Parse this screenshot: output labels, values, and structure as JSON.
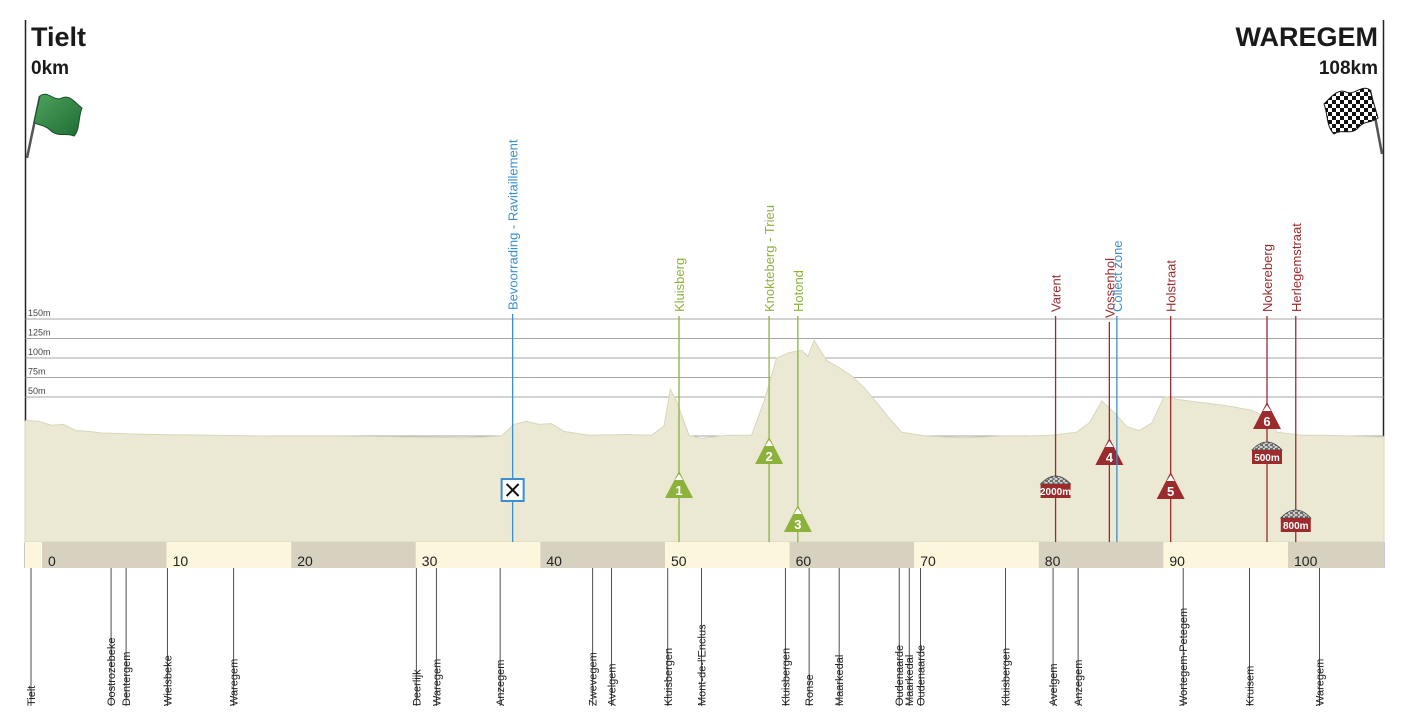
{
  "start": {
    "town": "Tielt",
    "km": "0km",
    "flag_icon": "green-flag-icon"
  },
  "finish": {
    "town": "WAREGEM",
    "km": "108km",
    "flag_icon": "checkered-flag-icon"
  },
  "colors": {
    "profile_fill": "#ebe9d4",
    "band_dark": "#d6d2bf",
    "band_light": "#fbf6dc",
    "climb_green": "#8db23c",
    "cobble_red": "#9b2b2c",
    "feed_blue": "#3b8fd0"
  },
  "chart_data": {
    "type": "area",
    "x_unit": "km",
    "y_unit": "m",
    "xlim": [
      0,
      108
    ],
    "ylim": [
      0,
      150
    ],
    "y_ticks": [
      "50m",
      "75m",
      "100m",
      "125m",
      "150m"
    ],
    "x_ticks": [
      "0",
      "10",
      "20",
      "30",
      "40",
      "50",
      "60",
      "70",
      "80",
      "90",
      "100"
    ],
    "profile": [
      [
        0,
        25
      ],
      [
        1,
        24
      ],
      [
        2,
        19
      ],
      [
        3,
        20
      ],
      [
        4,
        12
      ],
      [
        5,
        11
      ],
      [
        6,
        9
      ],
      [
        8,
        8
      ],
      [
        10,
        7
      ],
      [
        15,
        6
      ],
      [
        20,
        5
      ],
      [
        25,
        5
      ],
      [
        30,
        4
      ],
      [
        35,
        3
      ],
      [
        38,
        5
      ],
      [
        39,
        20
      ],
      [
        40,
        24
      ],
      [
        41,
        20
      ],
      [
        42,
        21
      ],
      [
        43,
        11
      ],
      [
        45,
        6
      ],
      [
        48,
        7
      ],
      [
        50,
        6
      ],
      [
        51,
        18
      ],
      [
        51.5,
        65
      ],
      [
        52,
        50
      ],
      [
        53,
        6
      ],
      [
        54,
        2
      ],
      [
        56,
        6
      ],
      [
        58,
        6
      ],
      [
        59,
        50
      ],
      [
        60,
        105
      ],
      [
        61,
        112
      ],
      [
        62,
        115
      ],
      [
        62.5,
        107
      ],
      [
        63,
        128
      ],
      [
        64,
        102
      ],
      [
        65,
        93
      ],
      [
        66,
        82
      ],
      [
        67,
        67
      ],
      [
        68,
        48
      ],
      [
        69,
        28
      ],
      [
        70,
        10
      ],
      [
        72,
        5
      ],
      [
        75,
        3
      ],
      [
        78,
        5
      ],
      [
        80,
        5
      ],
      [
        82,
        6
      ],
      [
        84,
        10
      ],
      [
        85,
        22
      ],
      [
        86,
        50
      ],
      [
        87,
        35
      ],
      [
        88,
        17
      ],
      [
        89,
        12
      ],
      [
        90,
        22
      ],
      [
        91,
        56
      ],
      [
        92,
        52
      ],
      [
        94,
        48
      ],
      [
        96,
        44
      ],
      [
        98,
        38
      ],
      [
        99,
        30
      ],
      [
        100,
        10
      ],
      [
        102,
        6
      ],
      [
        104,
        6
      ],
      [
        106,
        5
      ],
      [
        108,
        4
      ]
    ],
    "markers": [
      {
        "label": "Bevoorrading - Ravitaillement",
        "km": 38.9,
        "kind": "feed",
        "icon": "cutlery-icon"
      },
      {
        "label": "Kluisberg",
        "km": 52.2,
        "kind": "climb",
        "number": "1"
      },
      {
        "label": "Knokteberg - Trieu",
        "km": 59.4,
        "kind": "climb",
        "number": "2"
      },
      {
        "label": "Hotond",
        "km": 61.7,
        "kind": "climb",
        "number": "3"
      },
      {
        "label": "Varent",
        "km": 82.3,
        "kind": "cobble",
        "length": "2000m"
      },
      {
        "label": "Vossenhol",
        "km": 86.6,
        "kind": "climb-red",
        "number": "4"
      },
      {
        "label": "Collect zone",
        "km": 87.2,
        "kind": "zone"
      },
      {
        "label": "Holstraat",
        "km": 91.5,
        "kind": "climb-red",
        "number": "5"
      },
      {
        "label": "Nokereberg",
        "km": 99.2,
        "kind": "climb-red",
        "number": "6",
        "length": "500m"
      },
      {
        "label": "Herlegemstraat",
        "km": 101.5,
        "kind": "cobble",
        "length": "800m"
      }
    ],
    "towns": [
      {
        "name": "Tielt",
        "km": 0.4
      },
      {
        "name": "Oostrozebeke",
        "km": 6.8
      },
      {
        "name": "Dentergem",
        "km": 8.0
      },
      {
        "name": "Wielsbeke",
        "km": 11.3
      },
      {
        "name": "Waregem",
        "km": 16.6
      },
      {
        "name": "Deerlijk",
        "km": 31.2
      },
      {
        "name": "Waregem",
        "km": 32.8
      },
      {
        "name": "Anzegem",
        "km": 37.9
      },
      {
        "name": "Zwevegem",
        "km": 45.3
      },
      {
        "name": "Avelgem",
        "km": 46.8
      },
      {
        "name": "Kluisbergen",
        "km": 51.3
      },
      {
        "name": "Mont-de-l'Enclus",
        "km": 54.0
      },
      {
        "name": "Kluisbergen",
        "km": 60.7
      },
      {
        "name": "Ronse",
        "km": 62.6
      },
      {
        "name": "Maarkedal",
        "km": 65.0
      },
      {
        "name": "Oudenaarde",
        "km": 69.8
      },
      {
        "name": "Maarkedal",
        "km": 70.6
      },
      {
        "name": "Oudenaarde",
        "km": 71.5
      },
      {
        "name": "Kluisbergen",
        "km": 78.3
      },
      {
        "name": "Avelgem",
        "km": 82.1
      },
      {
        "name": "Anzegem",
        "km": 84.1
      },
      {
        "name": "Wortegem-Petegem",
        "km": 92.5
      },
      {
        "name": "Kruisem",
        "km": 97.8
      },
      {
        "name": "Waregem",
        "km": 103.4
      }
    ]
  }
}
